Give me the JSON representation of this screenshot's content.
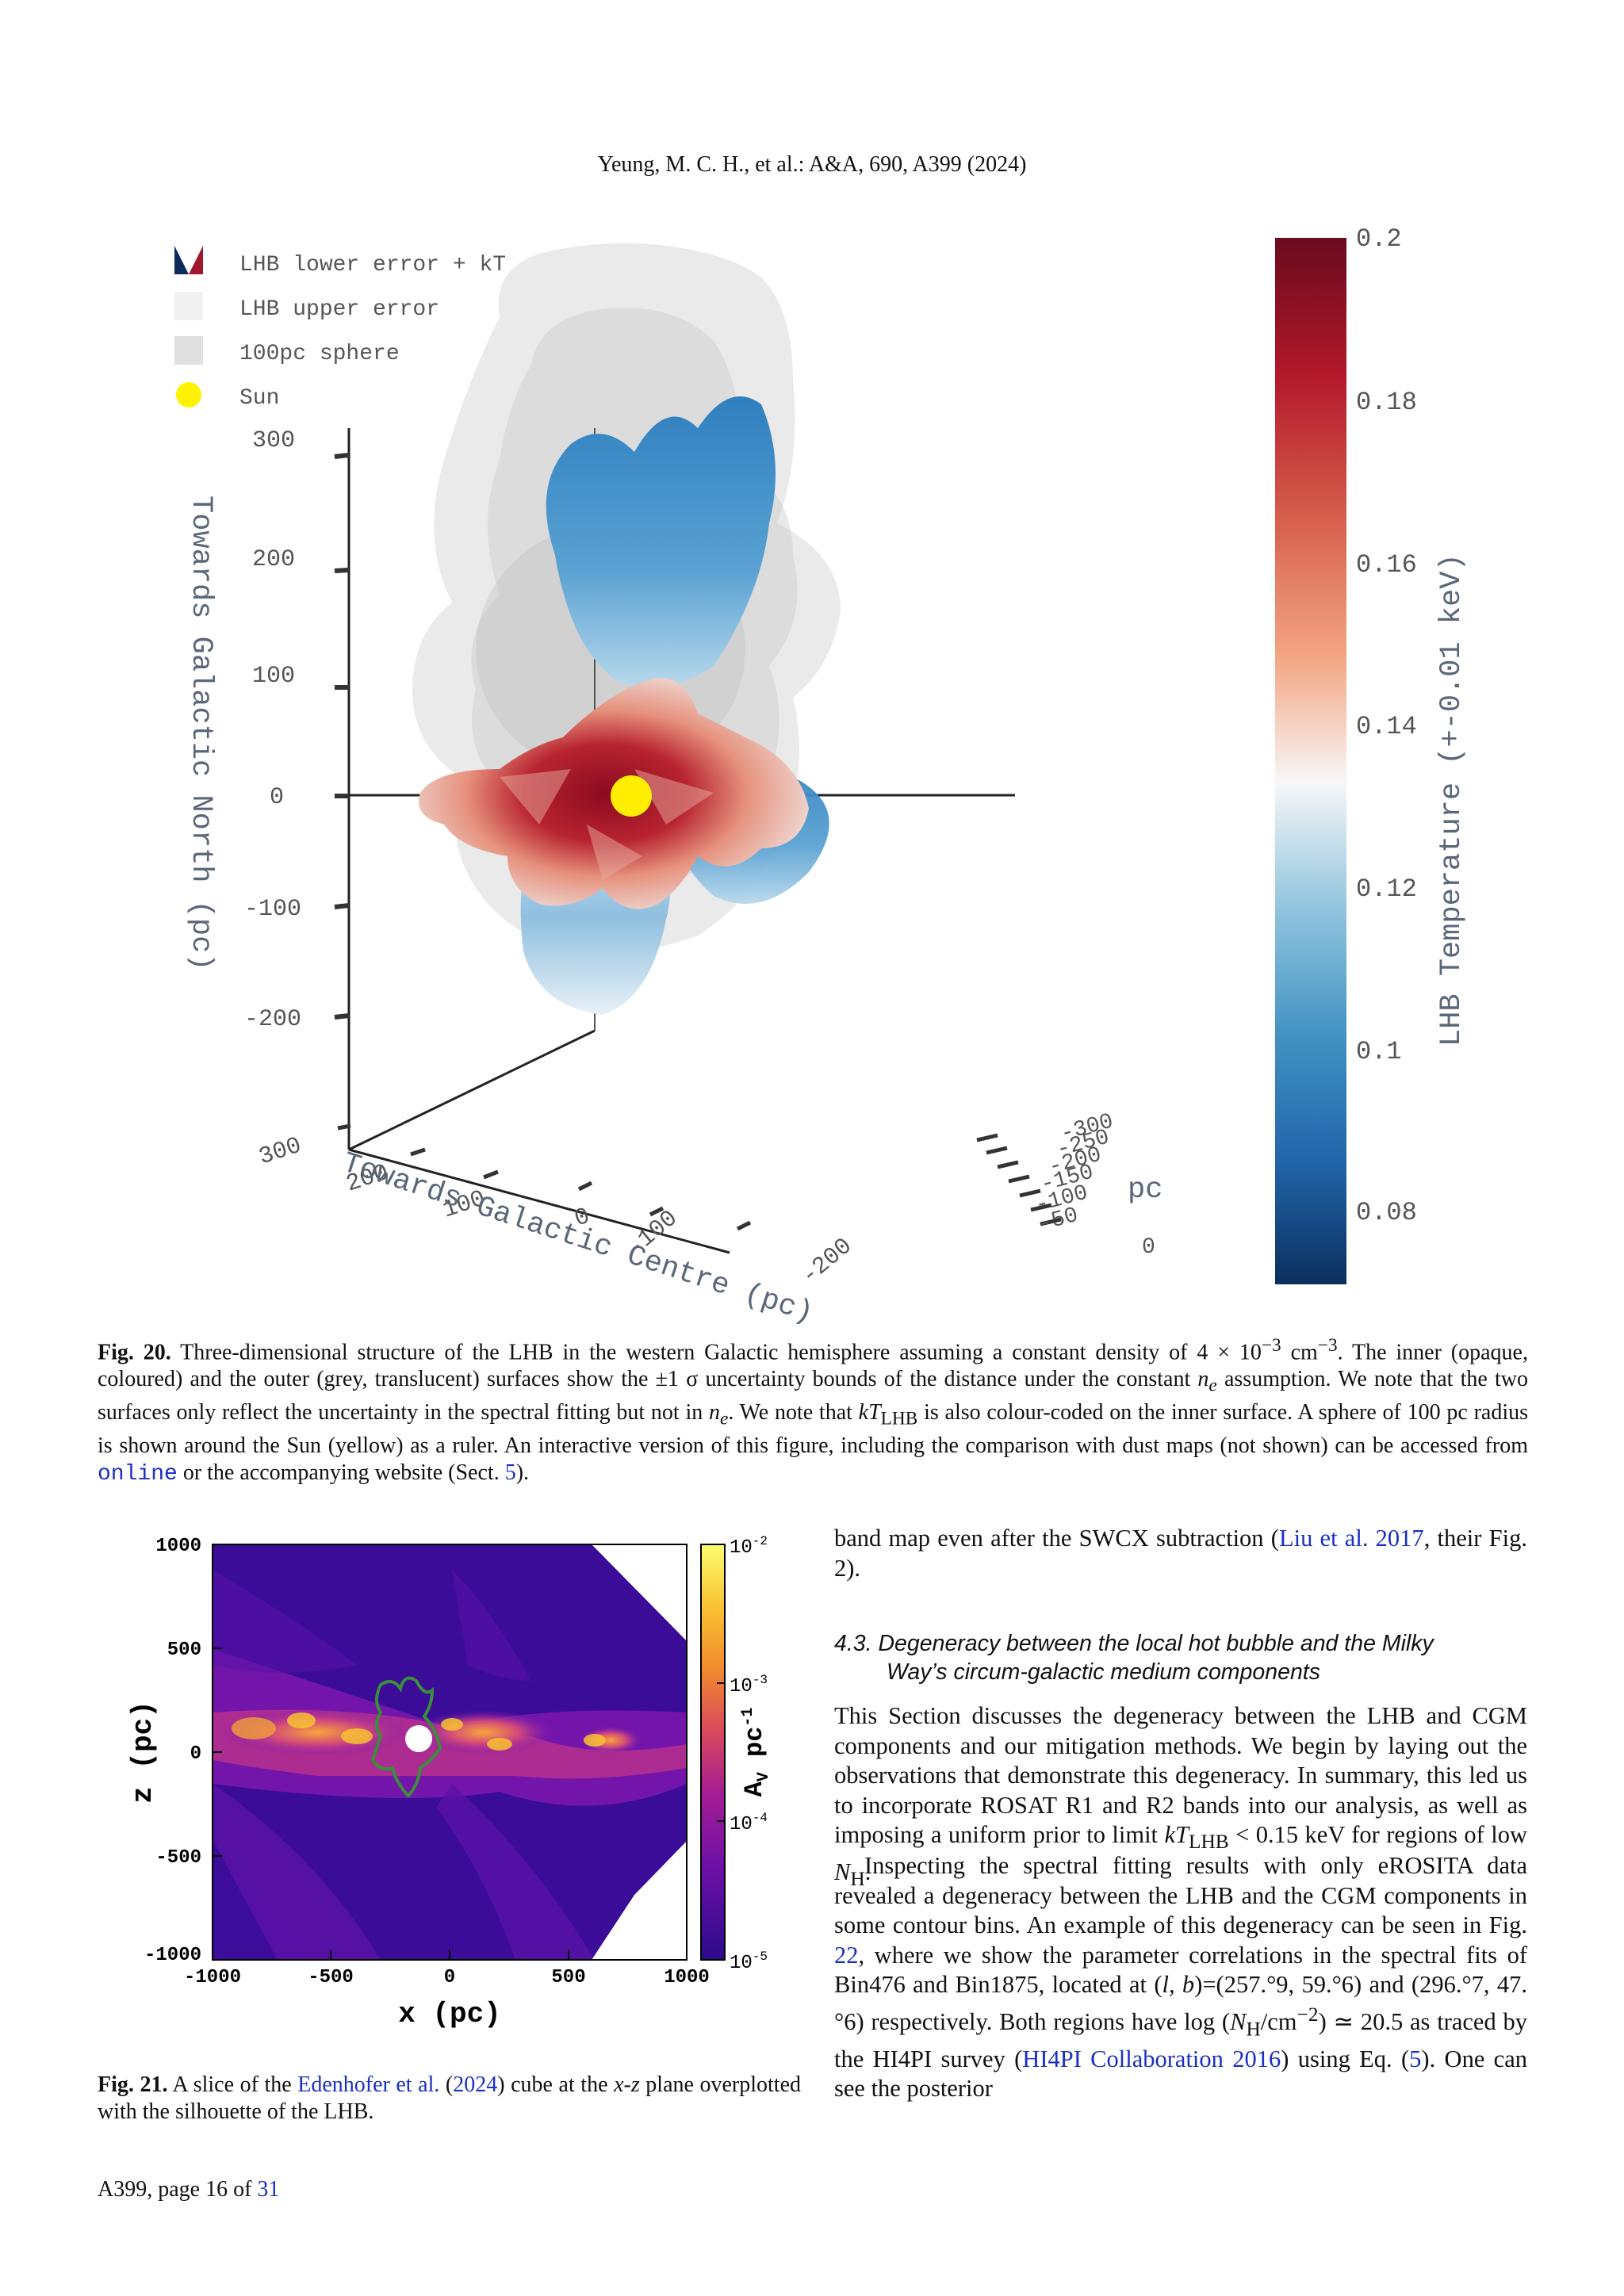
{
  "header": {
    "running_head": "Yeung, M. C. H., et al.: A&A, 690, A399  (2024)"
  },
  "fig20": {
    "legend": [
      {
        "label": "LHB lower error + kT",
        "icon": "split-colour-swatch"
      },
      {
        "label": "LHB upper error",
        "icon": "light-grey-swatch"
      },
      {
        "label": "100pc sphere",
        "icon": "grey-swatch"
      },
      {
        "label": "Sun",
        "icon": "yellow-circle"
      }
    ],
    "z_axis": {
      "label": "Towards Galactic North (pc)",
      "ticks": [
        "300",
        "200",
        "100",
        "0",
        "-100",
        "-200"
      ]
    },
    "x_axis": {
      "label": "Towards Galactic Centre (pc)",
      "ticks": [
        "300",
        "200",
        "100",
        "0",
        "-100",
        "-200"
      ]
    },
    "y_axis": {
      "label": "pc",
      "ticks": [
        "-300",
        "-250",
        "-200",
        "-150",
        "-100",
        "-50",
        "0"
      ]
    },
    "colorbar": {
      "label": "LHB Temperature (+-0.01 keV)",
      "ticks": [
        "0.2",
        "0.18",
        "0.16",
        "0.14",
        "0.12",
        "0.1",
        "0.08"
      ],
      "colors": [
        "#6b0a1e",
        "#b2182b",
        "#d6604d",
        "#f4a582",
        "#f7f7f7",
        "#92c5de",
        "#4393c3",
        "#2166ac",
        "#0b2f5e"
      ]
    },
    "caption_label": "Fig. 20.",
    "caption_p1": "Three-dimensional structure of the LHB in the western Galactic hemisphere assuming a constant density of 4 × 10",
    "caption_sup1": "−3",
    "caption_p2": " cm",
    "caption_sup2": "−3",
    "caption_p3": ". The inner (opaque, coloured) and the outer (grey, translucent) surfaces show the ±1 σ uncertainty bounds of the distance under the constant ",
    "caption_ne": "n",
    "caption_ne_sub": "e",
    "caption_p4": " assumption. We note that the two surfaces only reflect the uncertainty in the spectral fitting but not in ",
    "caption_p5": ". We note that ",
    "caption_kt": "kT",
    "caption_kt_sub": "LHB",
    "caption_p6": " is also colour-coded on the inner surface. A sphere of 100 pc radius is shown around the Sun (yellow) as a ruler. An interactive version of this figure, including the comparison with dust maps (not shown) can be accessed from ",
    "caption_online": "online",
    "caption_p7": " or the accompanying website (Sect. ",
    "caption_sect": "5",
    "caption_p8": ")."
  },
  "fig21": {
    "x_axis": {
      "label": "x (pc)",
      "ticks": [
        "-1000",
        "-500",
        "0",
        "500",
        "1000"
      ]
    },
    "y_axis": {
      "label": "z (pc)",
      "ticks": [
        "1000",
        "500",
        "0",
        "-500",
        "-1000"
      ]
    },
    "colorbar": {
      "label": "A",
      "label_sub": "V",
      "label_rest": " pc",
      "label_sup": "-1",
      "ticks": [
        {
          "base": "10",
          "exp": "-2"
        },
        {
          "base": "10",
          "exp": "-3"
        },
        {
          "base": "10",
          "exp": "-4"
        },
        {
          "base": "10",
          "exp": "-5"
        }
      ],
      "colors": [
        "#fcfd6f",
        "#f8c232",
        "#f28a2e",
        "#d9495c",
        "#a51d94",
        "#6c10a6",
        "#2c0a8a"
      ]
    },
    "caption_label": "Fig. 21.",
    "caption_p1": "A slice of the ",
    "caption_link": "Edenhofer et al.",
    "caption_p2": " (",
    "caption_year": "2024",
    "caption_p3": ") cube at the ",
    "caption_xz": "x-z",
    "caption_p4": " plane overplotted with the silhouette of the LHB."
  },
  "right_column": {
    "para0_a": "band map even after the SWCX subtraction (",
    "para0_link": "Liu et al. 2017",
    "para0_b": ", their Fig. 2).",
    "section_number": "4.3.",
    "section_title_line1": "Degeneracy between the local hot bubble and the Milky",
    "section_title_line2": "Way’s circum-galactic medium components",
    "para1_a": "This Section discusses the degeneracy between the LHB and CGM components and our mitigation methods. We begin by laying out the observations that demonstrate this degeneracy. In summary, this led us to incorporate ROSAT R1 and R2 bands into our analysis, as well as imposing a uniform prior to limit ",
    "para1_kt": "kT",
    "para1_kt_sub": "LHB",
    "para1_b": " < 0.15 keV for regions of low ",
    "para1_nh": "N",
    "para1_nh_sub": "H",
    "para1_c": ".",
    "para2_a": "Inspecting the spectral fitting results with only eROSITA data revealed a degeneracy between the LHB and the CGM components in some contour bins. An example of this degeneracy can be seen in Fig. ",
    "para2_fig": "22",
    "para2_b": ", where we show the parameter correlations in the spectral fits of Bin476 and Bin1875, located at (",
    "para2_c": "l, b",
    "para2_d": ")=(257.°9, 59.°6) and (296.°7, 47.°6) respectively. Both regions have log (",
    "para2_e": "/cm",
    "para2_sup": "−2",
    "para2_f": ") ≃ 20.5 as traced by the HI4PI survey (",
    "para2_link": "HI4PI Collaboration 2016",
    "para2_g": ") using Eq. (",
    "para2_eq": "5",
    "para2_h": "). One can see the posterior"
  },
  "footer": {
    "page_prefix": "A399, page 16 of ",
    "page_total": "31"
  }
}
